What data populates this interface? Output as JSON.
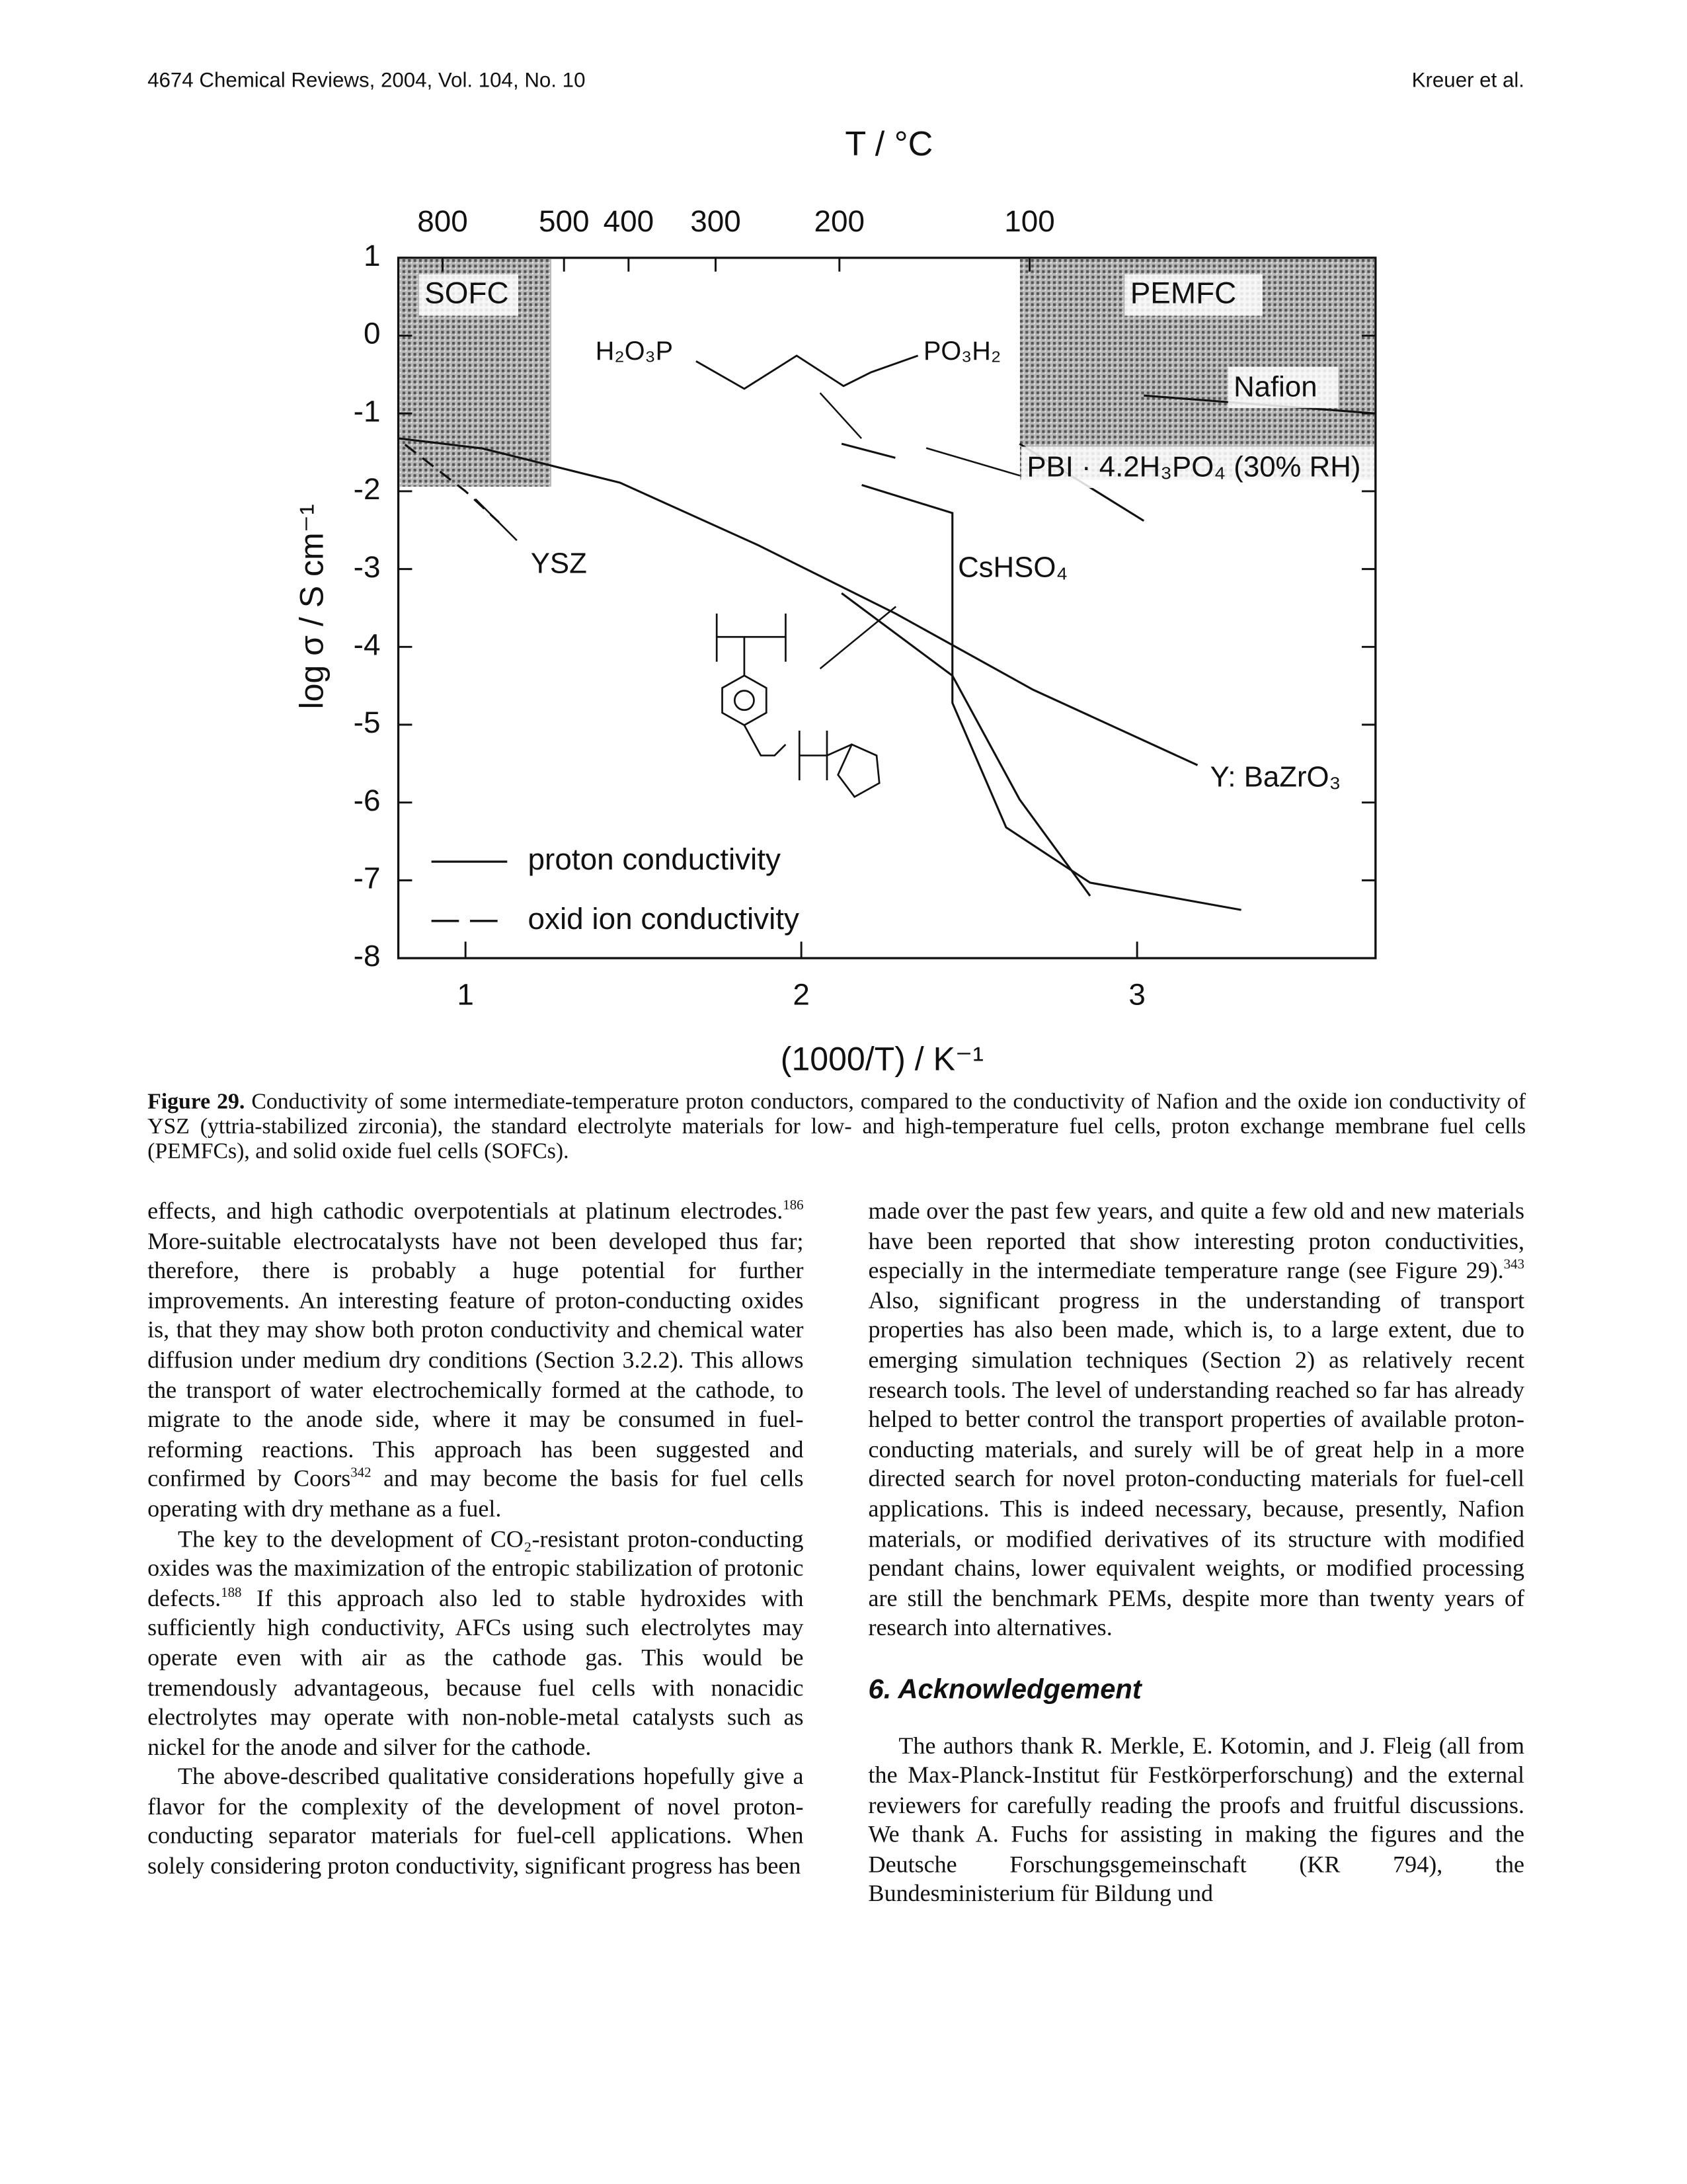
{
  "header": {
    "left": "4674 Chemical Reviews, 2004, Vol. 104, No. 10",
    "right": "Kreuer et al."
  },
  "figure": {
    "chart_data": {
      "type": "line",
      "top_axis": {
        "label": "T / °C",
        "ticks": [
          800,
          500,
          400,
          300,
          200,
          100
        ]
      },
      "xlabel": "(1000/T) / K⁻¹",
      "ylabel": "log σ / S cm⁻¹",
      "xlim": [
        0.8,
        3.71
      ],
      "ylim": [
        -8,
        1
      ],
      "xticks": [
        1,
        2,
        3
      ],
      "yticks": [
        -8,
        -7,
        -6,
        -5,
        -4,
        -3,
        -2,
        -1,
        0,
        1
      ],
      "grid": false,
      "regions": [
        "SOFC",
        "PEMFC"
      ],
      "annotations": [
        "H₂O₃P",
        "PO₃H₂"
      ],
      "legend": [
        {
          "label": "proton conductivity",
          "style": "solid"
        },
        {
          "label": "oxid ion conductivity",
          "style": "dashed"
        }
      ],
      "series": [
        {
          "name": "YSZ",
          "style": "dashed",
          "color": "#111111",
          "x": [
            0.82,
            1.0,
            1.1
          ],
          "values": [
            -1.4,
            -2.0,
            -2.4
          ]
        },
        {
          "name": "Y: BaZrO₃",
          "style": "solid",
          "color": "#111111",
          "x": [
            0.8,
            1.05,
            1.46,
            1.87,
            2.28,
            2.69,
            3.18
          ],
          "values": [
            -1.32,
            -1.45,
            -1.89,
            -2.69,
            -3.57,
            -4.55,
            -5.52
          ]
        },
        {
          "name": "CsHSO₄",
          "style": "solid",
          "color": "#111111",
          "x": [
            2.12,
            2.28,
            null,
            2.18,
            2.45,
            2.45,
            2.61,
            2.86,
            3.31
          ],
          "values": [
            -1.39,
            -1.57,
            null,
            -1.92,
            -2.28,
            -4.72,
            -6.32,
            -7.03,
            -7.38
          ]
        },
        {
          "style": "solid",
          "color": "#111111",
          "x": [
            2.12,
            2.45,
            2.65,
            2.86
          ],
          "values": [
            -3.31,
            -4.37,
            -5.96,
            -7.2
          ]
        },
        {
          "name": "PBI · 4.2H₃PO₄ (30% RH)",
          "style": "solid",
          "color": "#111111",
          "x": [
            2.65,
            3.02
          ],
          "values": [
            -1.39,
            -2.38
          ]
        },
        {
          "name": "Nafion",
          "style": "solid",
          "color": "#111111",
          "x": [
            3.02,
            3.71
          ],
          "values": [
            -0.77,
            -1.0
          ]
        }
      ]
    },
    "caption": {
      "label": "Figure 29.",
      "text": " Conductivity of some intermediate-temperature proton conductors, compared to the conductivity of Nafion and the oxide ion conductivity of YSZ (yttria-stabilized zirconia), the standard electrolyte materials for low- and high-temperature fuel cells, proton exchange membrane fuel cells (PEMFCs), and solid oxide fuel cells (SOFCs)."
    }
  },
  "body": {
    "left_column": [
      [
        "effects, and high cathodic overpotentials at platinum electrodes.",
        "186",
        " More-suitable electrocatalysts have not been developed thus far; therefore, there is probably a huge potential for further improvements. An interesting feature of proton-conducting oxides is, that they may show both proton conductivity and chemical water diffusion under medium dry conditions (Section 3.2.2). This allows the transport of water electrochemically formed at the cathode, to migrate to the anode side, where it may be consumed in fuel-reforming reactions. This approach has been suggested and confirmed by Coors",
        "342",
        " and may become the basis for fuel cells operating with dry methane as a fuel."
      ],
      [
        "The key to the development of CO₂-resistant proton-conducting oxides was the maximization of the entropic stabilization of protonic defects.",
        "188",
        " If this approach also led to stable hydroxides with sufficiently high conductivity, AFCs using such electrolytes may operate even with air as the cathode gas. This would be tremendously advantageous, because fuel cells with nonacidic electrolytes may operate with non-noble-metal catalysts such as nickel for the anode and silver for the cathode."
      ],
      [
        "The above-described qualitative considerations hopefully give a flavor for the complexity of the development of novel proton-conducting separator materials for fuel-cell applications. When solely considering proton conductivity, significant progress has been"
      ]
    ],
    "right_column": [
      [
        "made over the past few years, and quite a few old and new materials have been reported that show interesting proton conductivities, especially in the intermediate temperature range (see Figure 29).",
        "343",
        " Also, significant progress in the understanding of transport properties has also been made, which is, to a large extent, due to emerging simulation techniques (Section 2) as relatively recent research tools. The level of understanding reached so far has already helped to better control the transport properties of available proton-conducting materials, and surely will be of great help in a more directed search for novel proton-conducting materials for fuel-cell applications. This is indeed necessary, because, presently, Nafion materials, or modified derivatives of its structure with modified pendant chains, lower equivalent weights, or modified processing are still the benchmark PEMs, despite more than twenty years of research into alternatives."
      ]
    ],
    "section_heading": "6. Acknowledgement",
    "ack_paragraph": [
      "The authors thank R. Merkle, E. Kotomin, and J. Fleig (all from the Max-Planck-Institut für Festkörperforschung) and the external reviewers for carefully reading the proofs and fruitful discussions. We thank A. Fuchs for assisting in making the figures and the Deutsche Forschungsgemeinschaft (KR 794), the Bundesministerium für Bildung und"
    ]
  }
}
